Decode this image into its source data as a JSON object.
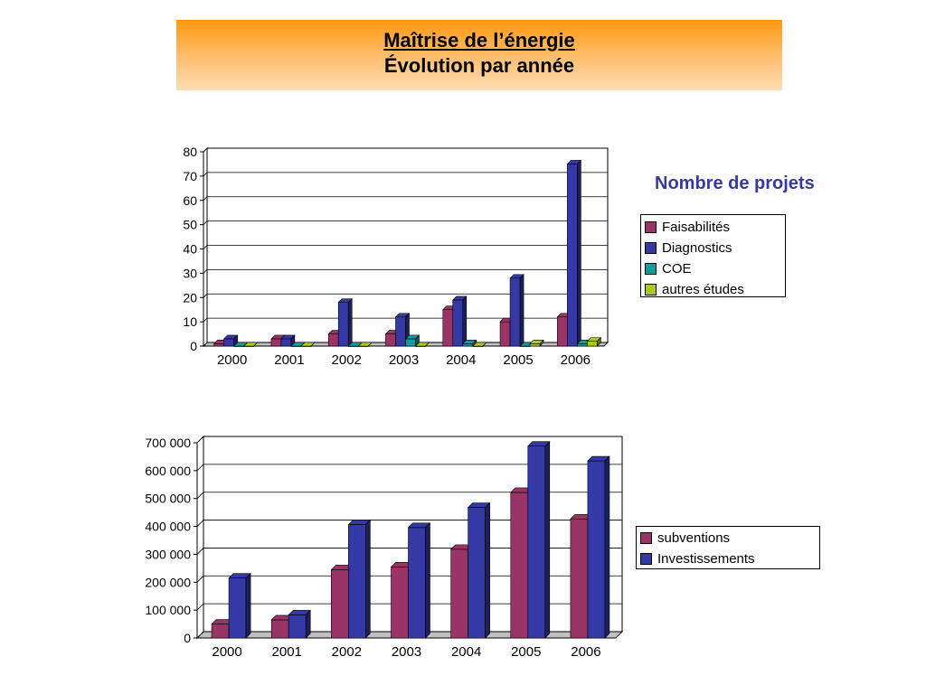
{
  "header": {
    "title_line1": "Maîtrise de l’énergie",
    "title_line2": "Évolution par année"
  },
  "subtitle": "Nombre de projets",
  "colors": {
    "header_top": "#ff9811",
    "header_bottom": "#fddcb4",
    "subtitle": "#3539a6"
  },
  "chart_data": [
    {
      "type": "bar",
      "title": "Nombre de projets",
      "categories": [
        "2000",
        "2001",
        "2002",
        "2003",
        "2004",
        "2005",
        "2006"
      ],
      "series": [
        {
          "name": "Faisabilités",
          "color": "#9b3466",
          "values": [
            1,
            3,
            5,
            5,
            15,
            10,
            12
          ]
        },
        {
          "name": "Diagnostics",
          "color": "#3539a6",
          "values": [
            3,
            3,
            18,
            12,
            19,
            28,
            75
          ]
        },
        {
          "name": "COE",
          "color": "#129ba1",
          "values": [
            0,
            0,
            0,
            3,
            1,
            0,
            1
          ]
        },
        {
          "name": "autres études",
          "color": "#a6cc1c",
          "values": [
            0,
            0,
            0,
            0,
            0,
            1,
            2
          ]
        }
      ],
      "yticks": [
        "0",
        "10",
        "20",
        "30",
        "40",
        "50",
        "60",
        "70",
        "80"
      ],
      "ylim": [
        0,
        80
      ],
      "grid": true,
      "legend": "right"
    },
    {
      "type": "bar",
      "categories": [
        "2000",
        "2001",
        "2002",
        "2003",
        "2004",
        "2005",
        "2006"
      ],
      "series": [
        {
          "name": "subventions",
          "color": "#9b3466",
          "values": [
            50000,
            65000,
            245000,
            255000,
            318000,
            522000,
            427000
          ]
        },
        {
          "name": "Investissements",
          "color": "#3539a6",
          "values": [
            215000,
            83000,
            407000,
            396000,
            468000,
            688000,
            635000
          ]
        }
      ],
      "yticks": [
        "0",
        "100 000",
        "200 000",
        "300 000",
        "400 000",
        "500 000",
        "600 000",
        "700 000"
      ],
      "ylim": [
        0,
        700000
      ],
      "grid": true,
      "legend": "right"
    }
  ]
}
